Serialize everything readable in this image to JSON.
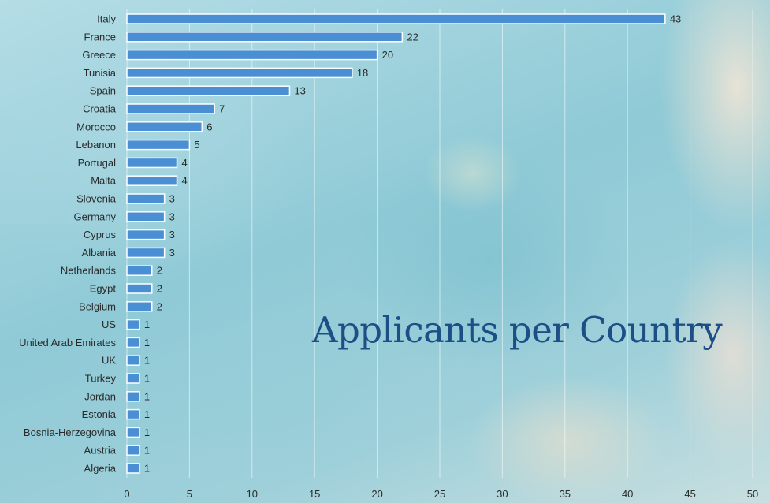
{
  "chart_data": {
    "type": "bar",
    "orientation": "horizontal",
    "title": "Applicants per Country",
    "categories": [
      "Italy",
      "France",
      "Greece",
      "Tunisia",
      "Spain",
      "Croatia",
      "Morocco",
      "Lebanon",
      "Portugal",
      "Malta",
      "Slovenia",
      "Germany",
      "Cyprus",
      "Albania",
      "Netherlands",
      "Egypt",
      "Belgium",
      "US",
      "United Arab Emirates",
      "UK",
      "Turkey",
      "Jordan",
      "Estonia",
      "Bosnia-Herzegovina",
      "Austria",
      "Algeria"
    ],
    "values": [
      43,
      22,
      20,
      18,
      13,
      7,
      6,
      5,
      4,
      4,
      3,
      3,
      3,
      3,
      2,
      2,
      2,
      1,
      1,
      1,
      1,
      1,
      1,
      1,
      1,
      1
    ],
    "xlim": [
      0,
      50
    ],
    "xticks": [
      0,
      5,
      10,
      15,
      20,
      25,
      30,
      35,
      40,
      45,
      50
    ],
    "grid": "vertical",
    "data_labels": true,
    "bar_color": "#4a8fd4",
    "bar_edge_color": "#ffffff",
    "title_color": "#1b4f85"
  }
}
